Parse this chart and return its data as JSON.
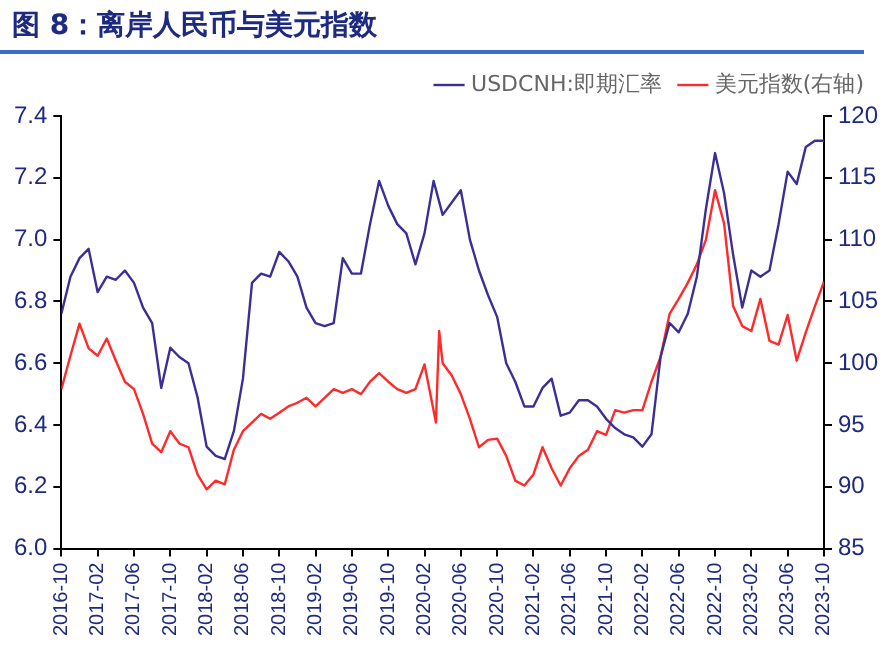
{
  "chart_data": {
    "type": "line",
    "title": "图 8：离岸人民币与美元指数",
    "legend": "top",
    "grid": false,
    "marker": "none",
    "line_style": "solid",
    "xlim": [
      "2016-10",
      "2023-10"
    ],
    "xticks": [
      "2016-10",
      "2017-02",
      "2017-06",
      "2017-10",
      "2018-02",
      "2018-06",
      "2018-10",
      "2019-02",
      "2019-06",
      "2019-10",
      "2020-02",
      "2020-06",
      "2020-10",
      "2021-02",
      "2021-06",
      "2021-10",
      "2022-02",
      "2022-06",
      "2022-10",
      "2023-02",
      "2023-06",
      "2023-10"
    ],
    "ylim": [
      6.0,
      7.4
    ],
    "yticks": [
      {
        "value": 6.0,
        "label": "6.0"
      },
      6.2,
      6.4,
      6.6,
      6.8,
      {
        "value": 7.0,
        "label": "7.0"
      },
      7.2,
      7.4
    ],
    "y2lim": [
      85,
      120
    ],
    "y2ticks": [
      85,
      90,
      95,
      100,
      105,
      110,
      115,
      120
    ],
    "series": [
      {
        "name": "USDCNH:即期汇率",
        "color": "#3b2f96",
        "x": [
          "2016-10",
          "2016-11",
          "2016-12",
          "2017-01",
          "2017-02",
          "2017-03",
          "2017-04",
          "2017-05",
          "2017-06",
          "2017-07",
          "2017-08",
          "2017-09",
          "2017-10",
          "2017-11",
          "2017-12",
          "2018-01",
          "2018-02",
          "2018-03",
          "2018-04",
          "2018-05",
          "2018-06",
          "2018-07",
          "2018-08",
          "2018-09",
          "2018-10",
          "2018-11",
          "2018-12",
          "2019-01",
          "2019-02",
          "2019-03",
          "2019-04",
          "2019-05",
          "2019-06",
          "2019-07",
          "2019-08",
          "2019-09",
          "2019-10",
          "2019-11",
          "2019-12",
          "2020-01",
          "2020-02",
          "2020-03",
          "2020-04",
          "2020-05",
          "2020-06",
          "2020-07",
          "2020-08",
          "2020-09",
          "2020-10",
          "2020-11",
          "2020-12",
          "2021-01",
          "2021-02",
          "2021-03",
          "2021-04",
          "2021-05",
          "2021-06",
          "2021-07",
          "2021-08",
          "2021-09",
          "2021-10",
          "2021-11",
          "2021-12",
          "2022-01",
          "2022-02",
          "2022-03",
          "2022-04",
          "2022-05",
          "2022-06",
          "2022-07",
          "2022-08",
          "2022-09",
          "2022-10",
          "2022-11",
          "2022-12",
          "2023-01",
          "2023-02",
          "2023-03",
          "2023-04",
          "2023-05",
          "2023-06",
          "2023-07",
          "2023-08",
          "2023-09",
          "2023-10"
        ],
        "values": [
          6.76,
          6.88,
          6.94,
          6.97,
          6.83,
          6.88,
          6.87,
          6.9,
          6.86,
          6.78,
          6.73,
          6.52,
          6.65,
          6.62,
          6.6,
          6.49,
          6.33,
          6.3,
          6.29,
          6.38,
          6.55,
          6.86,
          6.89,
          6.88,
          6.96,
          6.93,
          6.88,
          6.78,
          6.73,
          6.72,
          6.73,
          6.94,
          6.89,
          6.89,
          7.05,
          7.19,
          7.11,
          7.05,
          7.02,
          6.92,
          7.02,
          7.19,
          7.08,
          7.12,
          7.16,
          7.0,
          6.9,
          6.82,
          6.75,
          6.6,
          6.54,
          6.46,
          6.46,
          6.52,
          6.55,
          6.43,
          6.44,
          6.48,
          6.48,
          6.46,
          6.42,
          6.39,
          6.37,
          6.36,
          6.33,
          6.37,
          6.62,
          6.73,
          6.7,
          6.76,
          6.88,
          7.1,
          7.28,
          7.15,
          6.95,
          6.78,
          6.9,
          6.88,
          6.9,
          7.05,
          7.22,
          7.18,
          7.3,
          7.32,
          7.32
        ]
      },
      {
        "name": "美元指数(右轴)",
        "color": "#ff2a2a",
        "axis": "y2",
        "x": [
          "2016-10",
          "2016-11",
          "2016-12",
          "2017-01",
          "2017-02",
          "2017-03",
          "2017-04",
          "2017-05",
          "2017-06",
          "2017-07",
          "2017-08",
          "2017-09",
          "2017-10",
          "2017-11",
          "2017-12",
          "2018-01",
          "2018-02",
          "2018-03",
          "2018-04",
          "2018-05",
          "2018-06",
          "2018-07",
          "2018-08",
          "2018-09",
          "2018-10",
          "2018-11",
          "2018-12",
          "2019-01",
          "2019-02",
          "2019-03",
          "2019-04",
          "2019-05",
          "2019-06",
          "2019-07",
          "2019-08",
          "2019-09",
          "2019-10",
          "2019-11",
          "2019-12",
          "2020-01",
          "2020-02",
          "2020-03-09",
          "2020-03-20",
          "2020-04",
          "2020-05",
          "2020-06",
          "2020-07",
          "2020-08",
          "2020-09",
          "2020-10",
          "2020-11",
          "2020-12",
          "2021-01",
          "2021-02",
          "2021-03",
          "2021-04",
          "2021-05",
          "2021-06",
          "2021-07",
          "2021-08",
          "2021-09",
          "2021-10",
          "2021-11",
          "2021-12",
          "2022-01",
          "2022-02",
          "2022-03",
          "2022-04",
          "2022-05",
          "2022-06",
          "2022-07",
          "2022-08",
          "2022-09",
          "2022-10",
          "2022-11",
          "2022-12",
          "2023-01",
          "2023-02",
          "2023-03",
          "2023-04",
          "2023-05",
          "2023-06",
          "2023-07",
          "2023-08",
          "2023-09",
          "2023-10"
        ],
        "values": [
          97.9,
          100.6,
          103.2,
          101.2,
          100.6,
          102,
          100.2,
          98.5,
          97.9,
          95.9,
          93.5,
          92.8,
          94.5,
          93.5,
          93.2,
          91,
          89.8,
          90.5,
          90.2,
          93,
          94.5,
          95.2,
          95.9,
          95.5,
          96,
          96.5,
          96.8,
          97.2,
          96.5,
          97.2,
          97.9,
          97.6,
          97.9,
          97.5,
          98.5,
          99.2,
          98.5,
          97.9,
          97.6,
          97.9,
          99.9,
          95.2,
          102.6,
          100,
          99,
          97.5,
          95.5,
          93.2,
          93.8,
          93.9,
          92.5,
          90.5,
          90.1,
          91,
          93.2,
          91.5,
          90.1,
          91.5,
          92.5,
          93,
          94.5,
          94.2,
          96.2,
          96,
          96.2,
          96.2,
          98.5,
          100.5,
          104,
          105.2,
          106.5,
          108,
          110,
          114,
          111.3,
          104.6,
          103,
          102.6,
          105.2,
          101.8,
          101.5,
          103.9,
          100.2,
          102.5,
          104.6,
          106.6
        ]
      }
    ]
  }
}
